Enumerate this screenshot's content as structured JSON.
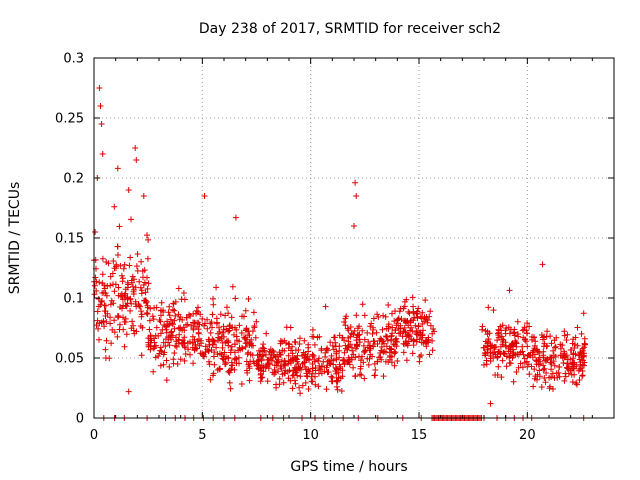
{
  "chart_data": {
    "type": "scatter",
    "title": "Day 238 of 2017, SRMTID for receiver sch2",
    "xlabel": "GPS time / hours",
    "ylabel": "SRMTID / TECUs",
    "xlim": [
      0,
      24
    ],
    "ylim": [
      0,
      0.3
    ],
    "xticks": [
      0,
      5,
      10,
      15,
      20
    ],
    "yticks": [
      0,
      0.05,
      0.1,
      0.15,
      0.2,
      0.25,
      0.3
    ],
    "xtick_labels": [
      "0",
      "5",
      "10",
      "15",
      "20"
    ],
    "ytick_labels": [
      "0",
      "0.05",
      "0.1",
      "0.15",
      "0.2",
      "0.25",
      "0.3"
    ],
    "grid": true,
    "marker": "+",
    "series_color": "#e00000",
    "series": [
      {
        "name": "SRMTID",
        "segments": [
          {
            "from": 0.0,
            "to": 2.5,
            "base": 0.1,
            "spread": 0.035
          },
          {
            "from": 2.5,
            "to": 5.0,
            "base": 0.07,
            "spread": 0.025
          },
          {
            "from": 5.0,
            "to": 7.5,
            "base": 0.06,
            "spread": 0.025
          },
          {
            "from": 7.5,
            "to": 11.5,
            "base": 0.045,
            "spread": 0.018
          },
          {
            "from": 11.5,
            "to": 14.0,
            "base": 0.06,
            "spread": 0.022
          },
          {
            "from": 14.0,
            "to": 15.7,
            "base": 0.075,
            "spread": 0.02
          },
          {
            "from": 17.9,
            "to": 20.0,
            "base": 0.06,
            "spread": 0.02
          },
          {
            "from": 20.0,
            "to": 22.7,
            "base": 0.05,
            "spread": 0.02
          }
        ],
        "peaks": [
          {
            "x": 0.05,
            "y": 0.155
          },
          {
            "x": 0.15,
            "y": 0.2
          },
          {
            "x": 0.25,
            "y": 0.275
          },
          {
            "x": 0.3,
            "y": 0.26
          },
          {
            "x": 0.35,
            "y": 0.245
          },
          {
            "x": 0.4,
            "y": 0.22
          },
          {
            "x": 1.1,
            "y": 0.208
          },
          {
            "x": 1.6,
            "y": 0.19
          },
          {
            "x": 1.9,
            "y": 0.225
          },
          {
            "x": 1.95,
            "y": 0.215
          },
          {
            "x": 2.3,
            "y": 0.185
          },
          {
            "x": 5.1,
            "y": 0.185
          },
          {
            "x": 6.55,
            "y": 0.167
          },
          {
            "x": 12.05,
            "y": 0.196
          },
          {
            "x": 12.1,
            "y": 0.185
          },
          {
            "x": 12.0,
            "y": 0.16
          },
          {
            "x": 20.7,
            "y": 0.128
          },
          {
            "x": 0.55,
            "y": 0.05
          },
          {
            "x": 18.3,
            "y": 0.012
          },
          {
            "x": 1.6,
            "y": 0.022
          }
        ],
        "zeros": [
          0.45,
          0.95,
          1.4,
          2.45,
          3.3,
          3.75,
          4.2,
          4.6,
          5.05,
          5.5,
          6.0,
          6.5,
          7.7,
          8.25,
          8.75,
          9.6,
          10.2,
          10.6,
          11.5,
          12.2,
          13.1,
          14.25,
          15.1,
          18.0,
          18.6,
          19.0,
          19.4,
          19.8,
          20.2,
          22.6
        ],
        "zero_run": [
          15.6,
          17.9
        ]
      }
    ]
  }
}
